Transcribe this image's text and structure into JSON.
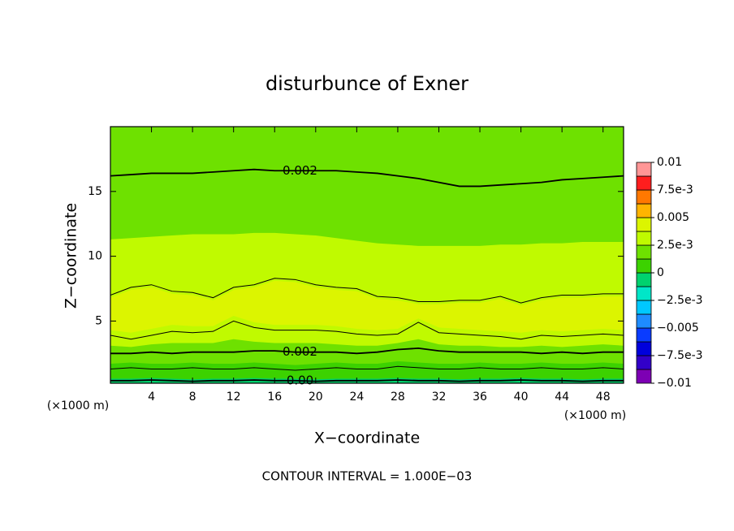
{
  "chart_data": {
    "type": "contour",
    "title": "disturbunce of Exner",
    "x_label": "X−coordinate",
    "y_label": "Z−coordinate",
    "x_unit": "(×1000 m)",
    "footer": "CONTOUR INTERVAL = 1.000E−03",
    "xlim": [
      0,
      50
    ],
    "ylim": [
      0.2,
      20
    ],
    "xticks": [
      4,
      8,
      12,
      16,
      20,
      24,
      28,
      32,
      36,
      40,
      44,
      48
    ],
    "yticks": [
      5,
      10,
      15
    ],
    "x": [
      0,
      2,
      4,
      6,
      8,
      10,
      12,
      14,
      16,
      18,
      20,
      22,
      24,
      26,
      28,
      30,
      32,
      34,
      36,
      38,
      40,
      42,
      44,
      46,
      48,
      50
    ],
    "regions": [
      {
        "level": -0.00125,
        "top": [
          0.55,
          0.55,
          0.6,
          0.55,
          0.5,
          0.55,
          0.55,
          0.6,
          0.55,
          0.55,
          0.5,
          0.55,
          0.55,
          0.55,
          0.6,
          0.55,
          0.55,
          0.5,
          0.55,
          0.55,
          0.6,
          0.55,
          0.55,
          0.5,
          0.55,
          0.55
        ]
      },
      {
        "level": 0,
        "top": [
          1.7,
          1.8,
          1.7,
          1.7,
          1.8,
          1.7,
          1.7,
          1.8,
          1.7,
          1.6,
          1.7,
          1.8,
          1.7,
          1.7,
          1.9,
          1.8,
          1.7,
          1.7,
          1.8,
          1.7,
          1.7,
          1.8,
          1.7,
          1.7,
          1.8,
          1.7
        ]
      },
      {
        "level": 0.00125,
        "top": [
          3.1,
          3.0,
          3.2,
          3.3,
          3.3,
          3.3,
          3.6,
          3.4,
          3.3,
          3.3,
          3.3,
          3.2,
          3.1,
          3.1,
          3.3,
          3.6,
          3.2,
          3.1,
          3.1,
          3.0,
          3.0,
          3.1,
          3.0,
          3.1,
          3.2,
          3.1
        ]
      },
      {
        "level": 0.0025,
        "top": [
          4.3,
          4.1,
          4.4,
          4.7,
          4.6,
          4.6,
          5.4,
          4.9,
          4.7,
          4.7,
          4.7,
          4.6,
          4.4,
          4.3,
          4.4,
          5.2,
          4.5,
          4.4,
          4.3,
          4.2,
          4.1,
          4.3,
          4.2,
          4.3,
          4.4,
          4.3
        ]
      },
      {
        "level": 0.00375,
        "top": [
          6.8,
          7.4,
          7.6,
          7.1,
          7.0,
          6.6,
          7.4,
          7.6,
          8.1,
          8.0,
          7.6,
          7.4,
          7.3,
          6.7,
          6.6,
          6.3,
          6.3,
          6.4,
          6.4,
          6.7,
          6.2,
          6.6,
          6.8,
          6.8,
          6.9,
          6.9
        ]
      },
      {
        "level": 0.0025,
        "top": [
          11.3,
          11.4,
          11.5,
          11.6,
          11.7,
          11.7,
          11.7,
          11.8,
          11.8,
          11.7,
          11.6,
          11.4,
          11.2,
          11.0,
          10.9,
          10.8,
          10.8,
          10.8,
          10.8,
          10.9,
          10.9,
          11.0,
          11.0,
          11.1,
          11.1,
          11.1
        ]
      },
      {
        "level": 0.00125
      }
    ],
    "contours": [
      {
        "label": "0.00",
        "y": [
          0.4,
          0.4,
          0.45,
          0.4,
          0.35,
          0.4,
          0.4,
          0.45,
          0.4,
          0.4,
          0.35,
          0.4,
          0.4,
          0.4,
          0.45,
          0.4,
          0.4,
          0.35,
          0.4,
          0.4,
          0.45,
          0.4,
          0.4,
          0.35,
          0.4,
          0.4
        ]
      },
      {
        "y": [
          1.3,
          1.4,
          1.3,
          1.3,
          1.4,
          1.3,
          1.3,
          1.4,
          1.3,
          1.2,
          1.3,
          1.4,
          1.3,
          1.3,
          1.5,
          1.4,
          1.3,
          1.3,
          1.4,
          1.3,
          1.3,
          1.4,
          1.3,
          1.3,
          1.4,
          1.3
        ]
      },
      {
        "label": "0.002",
        "y": [
          2.5,
          2.5,
          2.6,
          2.5,
          2.6,
          2.6,
          2.6,
          2.7,
          2.7,
          2.6,
          2.6,
          2.6,
          2.5,
          2.6,
          2.8,
          2.9,
          2.7,
          2.6,
          2.6,
          2.6,
          2.6,
          2.5,
          2.6,
          2.5,
          2.6,
          2.6
        ]
      },
      {
        "y": [
          3.9,
          3.6,
          3.9,
          4.2,
          4.1,
          4.2,
          5.0,
          4.5,
          4.3,
          4.3,
          4.3,
          4.2,
          4.0,
          3.9,
          4.0,
          4.9,
          4.1,
          4.0,
          3.9,
          3.8,
          3.6,
          3.9,
          3.8,
          3.9,
          4.0,
          3.9
        ]
      },
      {
        "y": [
          7.0,
          7.6,
          7.8,
          7.3,
          7.2,
          6.8,
          7.6,
          7.8,
          8.3,
          8.2,
          7.8,
          7.6,
          7.5,
          6.9,
          6.8,
          6.5,
          6.5,
          6.6,
          6.6,
          6.9,
          6.4,
          6.8,
          7.0,
          7.0,
          7.1,
          7.1
        ]
      },
      {
        "label": "0.002",
        "y": [
          16.2,
          16.3,
          16.4,
          16.4,
          16.4,
          16.5,
          16.6,
          16.7,
          16.6,
          16.6,
          16.6,
          16.6,
          16.5,
          16.4,
          16.2,
          16.0,
          15.7,
          15.4,
          15.4,
          15.5,
          15.6,
          15.7,
          15.9,
          16.0,
          16.1,
          16.2
        ]
      }
    ],
    "colorbar": {
      "levels": [
        -0.01,
        -0.00875,
        -0.0075,
        -0.00625,
        -0.005,
        -0.00375,
        -0.0025,
        -0.00125,
        0,
        0.00125,
        0.0025,
        0.00375,
        0.005,
        0.00625,
        0.0075,
        0.00875,
        0.01
      ],
      "colors": [
        "#7d00b4",
        "#3200c8",
        "#0000dc",
        "#0a3cff",
        "#1e8cff",
        "#00c8ff",
        "#00e6c8",
        "#00d26e",
        "#3cd200",
        "#6ee100",
        "#c0fa00",
        "#dcf500",
        "#ffb400",
        "#ff7800",
        "#ff1e1e",
        "#ff9696"
      ],
      "ticks": [
        0.01,
        {
          "value": 0.0075,
          "label": "7.5e-3"
        },
        0.005,
        {
          "value": 0.0025,
          "label": "2.5e-3"
        },
        0,
        {
          "value": -0.0025,
          "label": "−2.5e-3"
        },
        {
          "value": -0.005,
          "label": "−0.005"
        },
        {
          "value": -0.0075,
          "label": "−7.5e-3"
        },
        {
          "value": -0.01,
          "label": "−0.01"
        }
      ]
    }
  }
}
